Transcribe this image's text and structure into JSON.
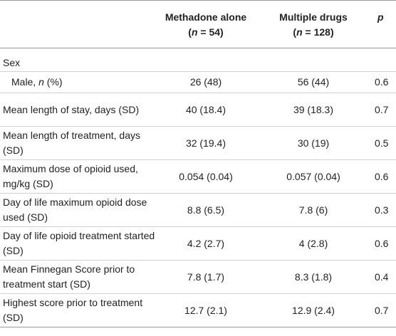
{
  "header": {
    "col_blank": "",
    "col_methadone_line1": "Methadone alone",
    "col_methadone_n_prefix": "(",
    "col_methadone_n_var": "n",
    "col_methadone_n_value": " = 54)",
    "col_multiple_line1": "Multiple drugs",
    "col_multiple_n_prefix": "(",
    "col_multiple_n_var": "n",
    "col_multiple_n_value": " = 128)",
    "col_p": "p"
  },
  "rows": [
    {
      "label": "Sex",
      "methadone": "",
      "multiple": "",
      "p": ""
    },
    {
      "label_prefix": "Male, ",
      "label_var": "n",
      "label_suffix": " (%)",
      "methadone": "26 (48)",
      "multiple": "56 (44)",
      "p": "0.6"
    },
    {
      "label": "Mean length of stay, days (SD)",
      "methadone": "40 (18.4)",
      "multiple": "39 (18.3)",
      "p": "0.7"
    },
    {
      "label": "Mean length of treatment, days (SD)",
      "methadone": "32 (19.4)",
      "multiple": "30 (19)",
      "p": "0.5"
    },
    {
      "label": "Maximum dose of opioid used, mg/kg (SD)",
      "methadone": "0.054 (0.04)",
      "multiple": "0.057 (0.04)",
      "p": "0.6"
    },
    {
      "label": "Day of life maximum opioid dose used (SD)",
      "methadone": "8.8 (6.5)",
      "multiple": "7.8 (6)",
      "p": "0.3"
    },
    {
      "label": "Day of life opioid treatment started (SD)",
      "methadone": "4.2 (2.7)",
      "multiple": "4 (2.8)",
      "p": "0.6"
    },
    {
      "label": "Mean Finnegan Score prior to treatment start (SD)",
      "methadone": "7.8 (1.7)",
      "multiple": "8.3 (1.8)",
      "p": "0.4"
    },
    {
      "label": "Highest score prior to treatment (SD)",
      "methadone": "12.7 (2.1)",
      "multiple": "12.9 (2.4)",
      "p": "0.7"
    }
  ]
}
